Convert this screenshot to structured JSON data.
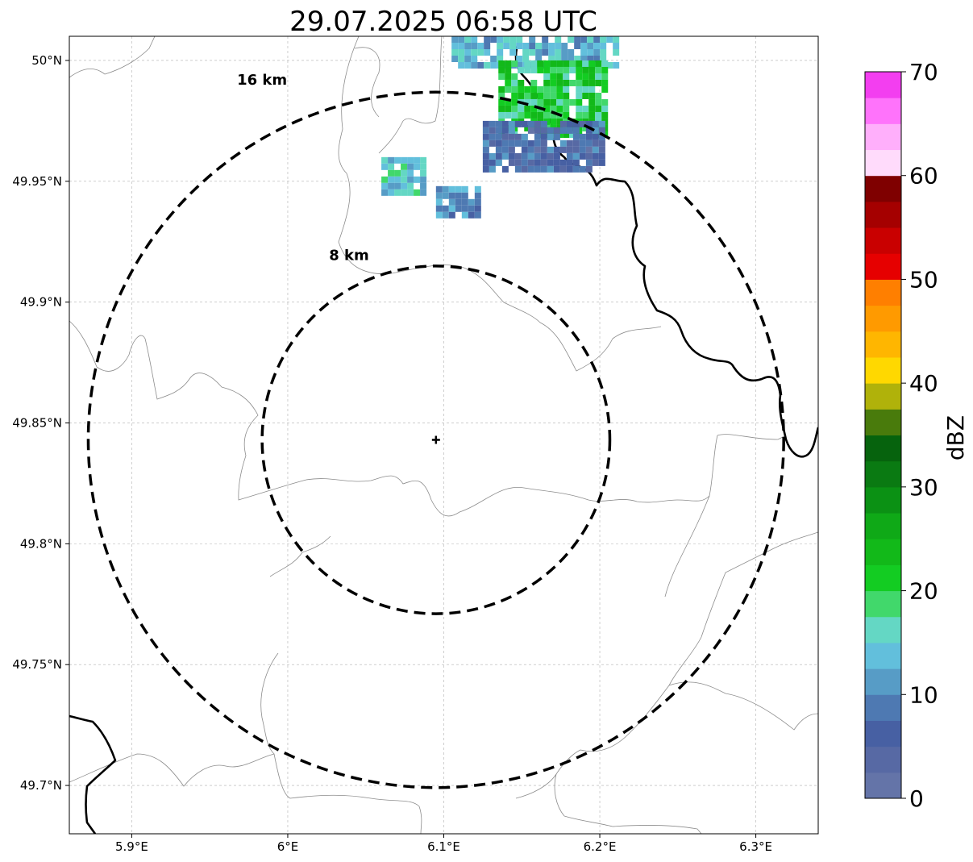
{
  "title": "29.07.2025 06:58 UTC",
  "map": {
    "lon_range": [
      5.86,
      6.34
    ],
    "lat_range": [
      49.68,
      50.01
    ],
    "grid": true,
    "lon_ticks": [
      {
        "value": 5.9,
        "label": "5.9°E"
      },
      {
        "value": 6.0,
        "label": "6°E"
      },
      {
        "value": 6.1,
        "label": "6.1°E"
      },
      {
        "value": 6.2,
        "label": "6.2°E"
      },
      {
        "value": 6.3,
        "label": "6.3°E"
      }
    ],
    "lat_ticks": [
      {
        "value": 50.0,
        "label": "50°N"
      },
      {
        "value": 49.95,
        "label": "49.95°N"
      },
      {
        "value": 49.9,
        "label": "49.9°N"
      },
      {
        "value": 49.85,
        "label": "49.85°N"
      },
      {
        "value": 49.8,
        "label": "49.8°N"
      },
      {
        "value": 49.75,
        "label": "49.75°N"
      },
      {
        "value": 49.7,
        "label": "49.7°N"
      }
    ],
    "radar_site": {
      "lon": 6.095,
      "lat": 49.843
    },
    "range_rings": [
      {
        "radius_km": 8,
        "label": "8 km"
      },
      {
        "radius_km": 16,
        "label": "16 km"
      }
    ]
  },
  "colorbar": {
    "label": "dBZ",
    "min": 0,
    "max": 70,
    "step": 2.5,
    "ticks": [
      "0",
      "10",
      "20",
      "30",
      "40",
      "50",
      "60",
      "70"
    ],
    "colors": [
      "#6474a8",
      "#5769a4",
      "#4760a3",
      "#4e79b2",
      "#579cc6",
      "#62bfdc",
      "#64d7c4",
      "#41d86b",
      "#13cc22",
      "#12b919",
      "#0fa917",
      "#0b9114",
      "#0a7a12",
      "#06630d",
      "#497b0c",
      "#b0b20a",
      "#ffd800",
      "#ffb600",
      "#ff9a00",
      "#ff7f00",
      "#e60000",
      "#c90000",
      "#a50000",
      "#7f0000",
      "#ffdbfb",
      "#ffaffb",
      "#ff73fb",
      "#f33ef0"
    ]
  },
  "echoes": [
    {
      "lon_min": 6.105,
      "lon_max": 6.21,
      "lat_min": 49.998,
      "lat_max": 50.01,
      "dbz": 12
    },
    {
      "lon_min": 6.135,
      "lon_max": 6.205,
      "lat_min": 49.97,
      "lat_max": 50.0,
      "dbz": 20
    },
    {
      "lon_min": 6.125,
      "lon_max": 6.2,
      "lat_min": 49.955,
      "lat_max": 49.975,
      "dbz": 6
    },
    {
      "lon_min": 6.06,
      "lon_max": 6.085,
      "lat_min": 49.945,
      "lat_max": 49.96,
      "dbz": 14
    },
    {
      "lon_min": 6.095,
      "lon_max": 6.12,
      "lat_min": 49.935,
      "lat_max": 49.948,
      "dbz": 10
    }
  ]
}
